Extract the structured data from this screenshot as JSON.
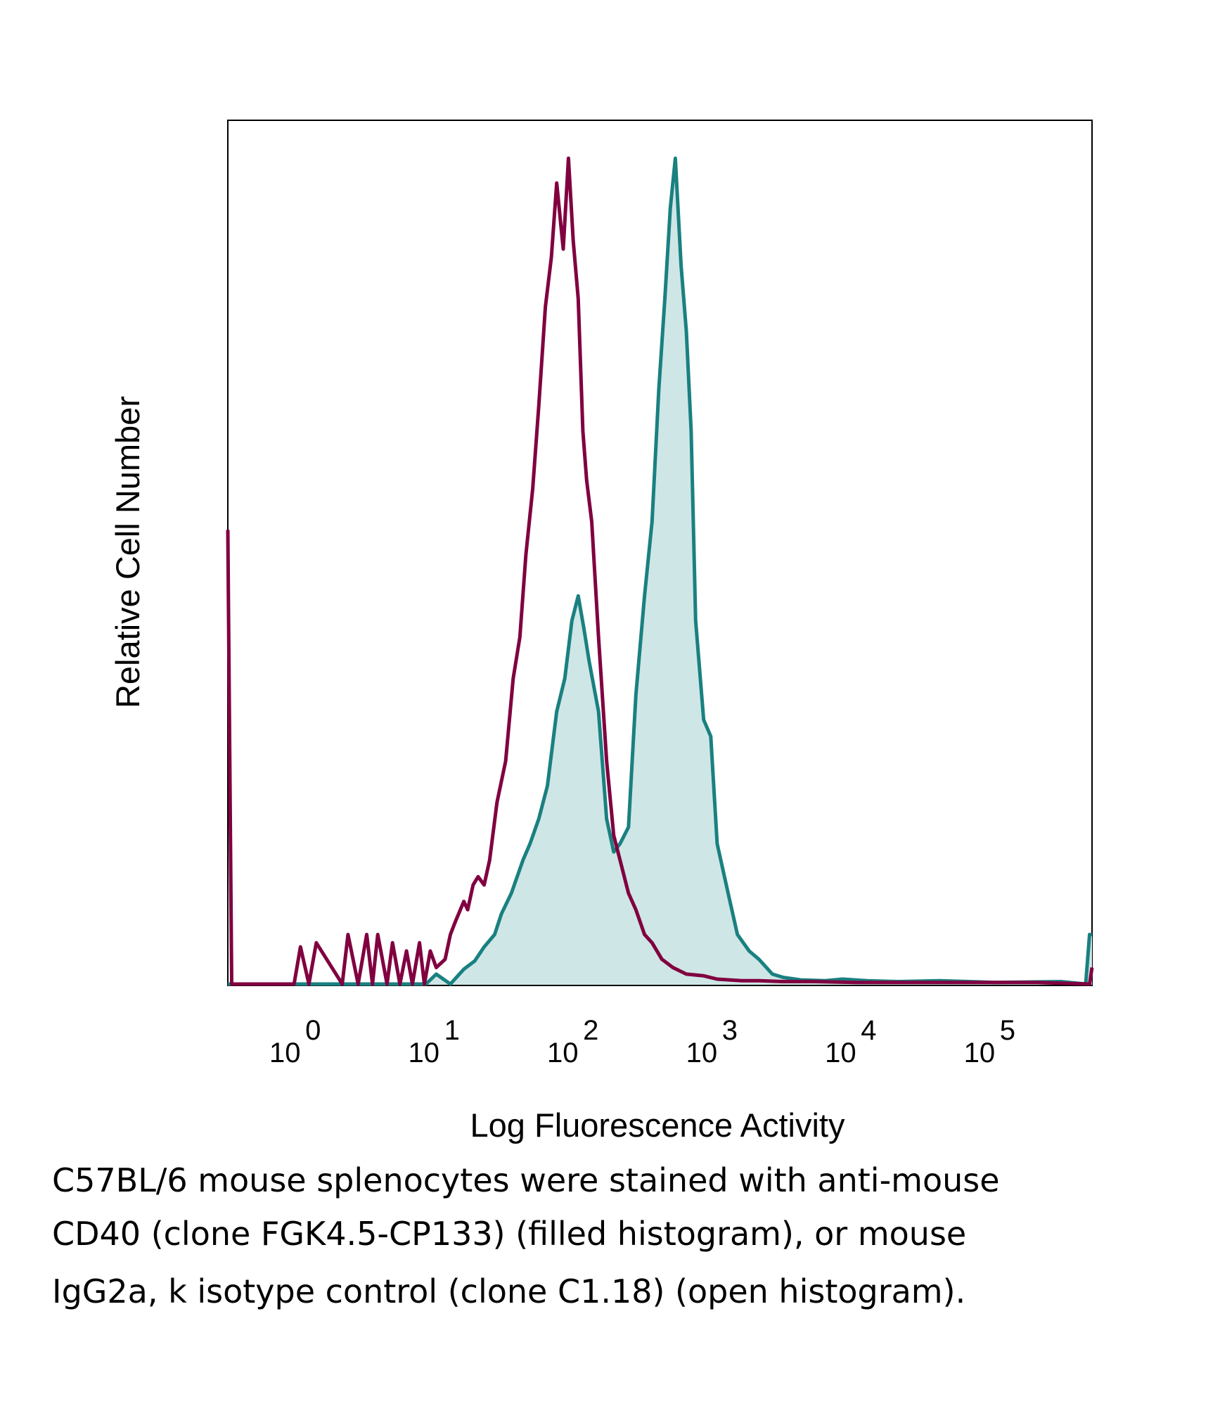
{
  "chart_data": {
    "type": "area",
    "title": "",
    "xlabel": "Log Fluorescence Activity",
    "ylabel": "Relative Cell Number",
    "xscale": "log",
    "xlim": [
      0.3,
      500000
    ],
    "ylim": [
      0,
      1.0
    ],
    "grid": false,
    "legend": "none",
    "x_ticks": [
      {
        "base": "10",
        "exp": "0",
        "value": 1
      },
      {
        "base": "10",
        "exp": "1",
        "value": 10
      },
      {
        "base": "10",
        "exp": "2",
        "value": 100
      },
      {
        "base": "10",
        "exp": "3",
        "value": 1000
      },
      {
        "base": "10",
        "exp": "4",
        "value": 10000
      },
      {
        "base": "10",
        "exp": "5",
        "value": 100000
      }
    ],
    "series": [
      {
        "name": "anti-mouse CD40 (clone FGK4.5-CP133)",
        "style": "filled",
        "color": "#1a8080",
        "fill": "#cfe6e6",
        "x": [
          0.3,
          8,
          9.5,
          12,
          15,
          18,
          21,
          25,
          28,
          33,
          40,
          45,
          52,
          60,
          70,
          80,
          90,
          100,
          110,
          120,
          140,
          160,
          180,
          200,
          230,
          260,
          300,
          340,
          380,
          420,
          460,
          500,
          550,
          600,
          650,
          700,
          800,
          900,
          1000,
          1200,
          1400,
          1700,
          2000,
          2500,
          3000,
          4000,
          6000,
          8000,
          12000,
          20000,
          40000,
          100000,
          300000,
          450000,
          480000,
          500000
        ],
        "values": [
          0,
          0,
          0.012,
          0,
          0.018,
          0.028,
          0.045,
          0.06,
          0.085,
          0.11,
          0.15,
          0.17,
          0.2,
          0.24,
          0.33,
          0.37,
          0.44,
          0.47,
          0.43,
          0.39,
          0.33,
          0.2,
          0.16,
          0.17,
          0.19,
          0.35,
          0.47,
          0.56,
          0.72,
          0.83,
          0.94,
          1.0,
          0.87,
          0.79,
          0.67,
          0.44,
          0.32,
          0.3,
          0.17,
          0.11,
          0.06,
          0.04,
          0.03,
          0.012,
          0.008,
          0.005,
          0.004,
          0.006,
          0.004,
          0.003,
          0.004,
          0.002,
          0.003,
          0.0,
          0.06,
          0.06
        ]
      },
      {
        "name": "mouse IgG2a, k isotype control (clone C1.18)",
        "style": "open",
        "color": "#800040",
        "x": [
          0.3,
          0.32,
          0.36,
          0.9,
          1.0,
          1.15,
          1.3,
          2.0,
          2.2,
          2.6,
          3.0,
          3.3,
          3.6,
          4.2,
          4.6,
          5.2,
          5.8,
          6.4,
          7.2,
          7.8,
          8.6,
          9.5,
          11,
          12,
          13,
          15,
          16,
          17.5,
          19,
          21,
          23,
          26,
          30,
          34,
          38,
          42,
          47,
          52,
          58,
          64,
          70,
          78,
          85,
          92,
          100,
          108,
          115,
          125,
          140,
          160,
          180,
          200,
          230,
          260,
          300,
          340,
          400,
          480,
          600,
          800,
          1000,
          1500,
          2000,
          3000,
          5000,
          10000,
          50000,
          200000,
          480000,
          500000
        ],
        "values": [
          0.55,
          0.0,
          0.0,
          0.0,
          0.045,
          0.0,
          0.05,
          0.0,
          0.06,
          0.0,
          0.06,
          0.0,
          0.06,
          0.0,
          0.05,
          0.0,
          0.04,
          0.0,
          0.05,
          0.0,
          0.04,
          0.02,
          0.03,
          0.06,
          0.075,
          0.1,
          0.09,
          0.12,
          0.13,
          0.12,
          0.15,
          0.22,
          0.27,
          0.37,
          0.42,
          0.52,
          0.6,
          0.7,
          0.82,
          0.88,
          0.97,
          0.89,
          1.0,
          0.9,
          0.83,
          0.67,
          0.61,
          0.56,
          0.42,
          0.27,
          0.18,
          0.15,
          0.11,
          0.09,
          0.06,
          0.05,
          0.03,
          0.02,
          0.012,
          0.01,
          0.006,
          0.004,
          0.004,
          0.003,
          0.003,
          0.002,
          0.002,
          0.002,
          0.0,
          0.02
        ]
      }
    ]
  },
  "caption": {
    "line1": "C57BL/6 mouse splenocytes were stained with anti-mouse",
    "line2": "CD40 (clone FGK4.5-CP133) (filled histogram), or mouse",
    "line3": "IgG2a, k isotype control (clone C1.18) (open histogram)."
  }
}
